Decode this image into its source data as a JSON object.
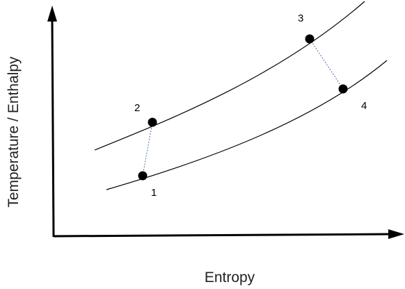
{
  "axes": {
    "x_label": "Entropy",
    "y_label": "Temperature / Enthalpy"
  },
  "states": [
    {
      "label": "1"
    },
    {
      "label": "2"
    },
    {
      "label": "3"
    },
    {
      "label": "4"
    }
  ],
  "colors": {
    "axis": "#000000",
    "curve": "#000000",
    "process_line": "#4a6fa5",
    "point": "#000000"
  }
}
